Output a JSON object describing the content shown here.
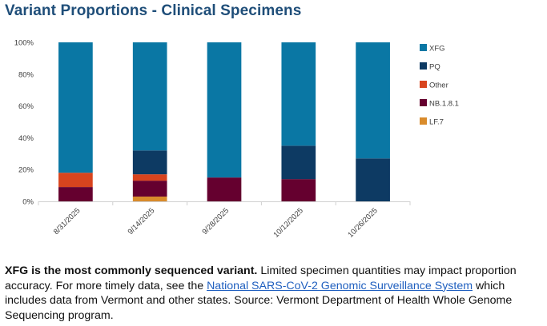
{
  "title": "Variant Proportions - Clinical Specimens",
  "colors": {
    "XFG": "#0a77a4",
    "PQ": "#0d3a63",
    "Other": "#d8441e",
    "NB.1.8.1": "#65002f",
    "LF.7": "#d98b2b"
  },
  "chart_data": {
    "type": "bar",
    "stacked": true,
    "categories": [
      "8/31/2025",
      "9/14/2025",
      "9/28/2025",
      "10/12/2025",
      "10/26/2025"
    ],
    "series": [
      {
        "name": "LF.7",
        "values": [
          0,
          3,
          0,
          0,
          0
        ]
      },
      {
        "name": "NB.1.8.1",
        "values": [
          9,
          10,
          15,
          14,
          0
        ]
      },
      {
        "name": "Other",
        "values": [
          9,
          4,
          0,
          0,
          0
        ]
      },
      {
        "name": "PQ",
        "values": [
          0,
          15,
          0,
          21,
          27
        ]
      },
      {
        "name": "XFG",
        "values": [
          82,
          68,
          85,
          65,
          73
        ]
      }
    ],
    "legend_order": [
      "XFG",
      "PQ",
      "Other",
      "NB.1.8.1",
      "LF.7"
    ],
    "y_ticks": [
      "0%",
      "20%",
      "40%",
      "60%",
      "80%",
      "100%"
    ],
    "ylim": [
      0,
      100
    ],
    "legend_position": "right",
    "grid": false
  },
  "caption": {
    "bold": "XFG is the most commonly sequenced variant.",
    "text1": " Limited specimen quantities may impact proportion accuracy. For more timely data, see the ",
    "link": "National SARS-CoV-2 Genomic Surveillance System",
    "text2": " which includes data from Vermont and other states. Source: Vermont Department of Health Whole Genome Sequencing program."
  }
}
